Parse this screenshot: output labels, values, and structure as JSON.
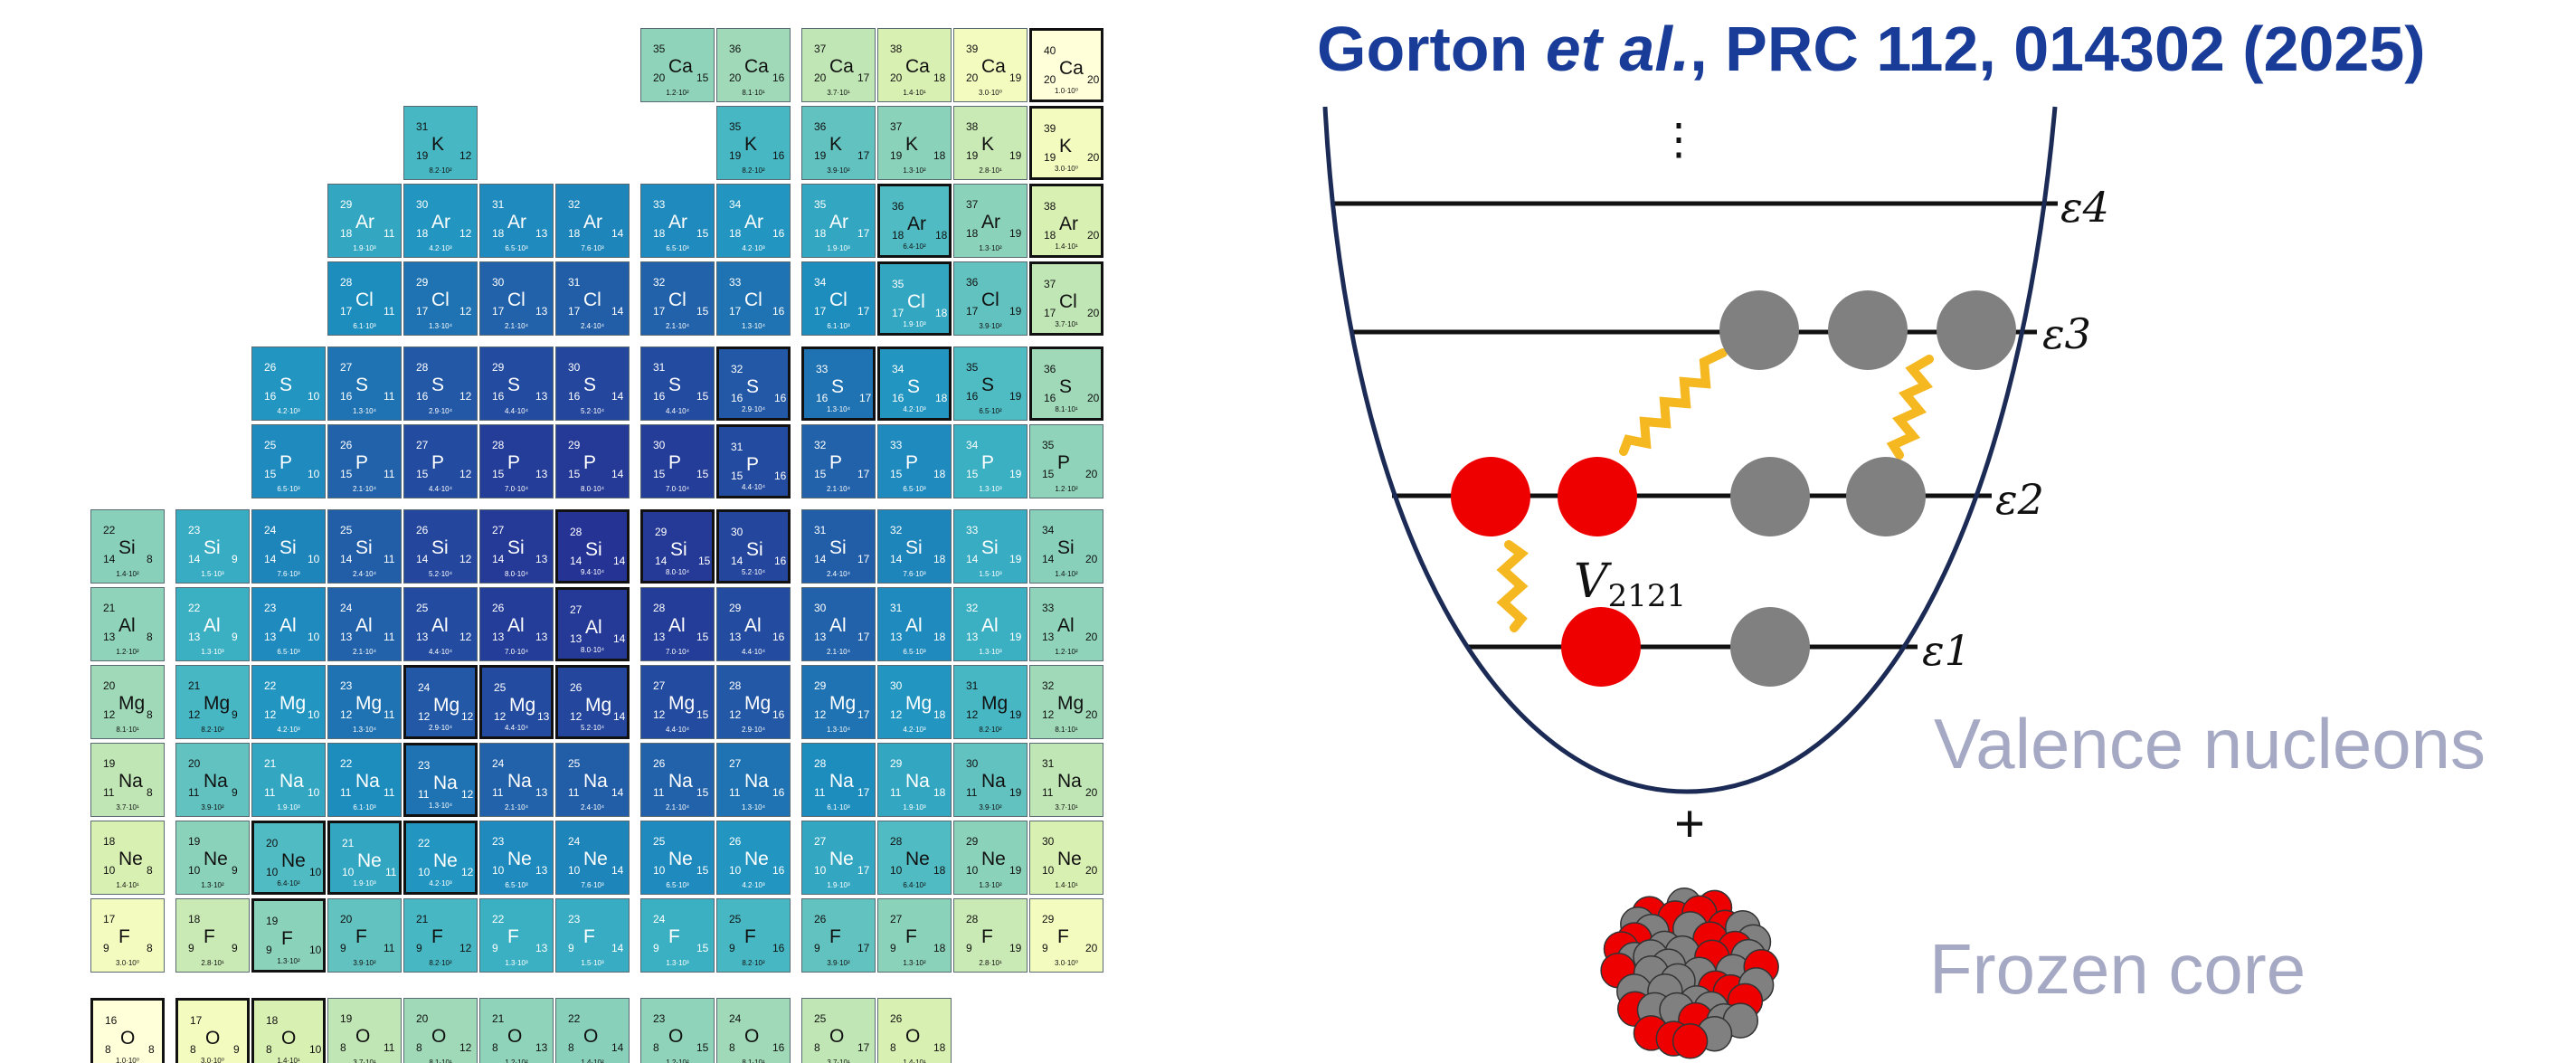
{
  "title": {
    "author": "Gorton ",
    "etal": "et al.",
    "rest": ", PRC 112, 014302 (2025)"
  },
  "labels": {
    "valence": "Valence nucleons",
    "core": "Frozen core",
    "interaction": "V2121",
    "plus": "+",
    "vdots": "⋮"
  },
  "levels": [
    "ε4",
    "ε3",
    "ε2",
    "ε1"
  ],
  "colors": {
    "title": "#1a3c99",
    "caption": "#a6a9c4",
    "proton": "#ee0000",
    "neutron": "#808080",
    "interaction": "#f5b820",
    "well": "#1b2b55"
  },
  "nuclide_chart": {
    "rows": [
      {
        "Z": 20,
        "el": "Ca",
        "N": [
          15,
          16,
          17,
          18,
          19,
          20
        ],
        "dm": [
          "1.2·10²",
          "8.1·10¹",
          "3.7·10¹",
          "1.4·10¹",
          "3.0·10⁰",
          "1.0·10⁰"
        ]
      },
      {
        "Z": 19,
        "el": "K",
        "N": [
          12,
          16,
          17,
          18,
          19,
          20
        ],
        "dm": [
          "8.2·10²",
          "8.2·10²",
          "3.9·10²",
          "1.3·10²",
          "2.8·10¹",
          "3.0·10⁰"
        ]
      },
      {
        "Z": 18,
        "el": "Ar",
        "N": [
          11,
          12,
          13,
          14,
          15,
          16,
          17,
          18,
          19,
          20
        ],
        "dm": [
          "1.9·10³",
          "4.2·10³",
          "6.5·10³",
          "7.6·10³",
          "6.5·10³",
          "4.2·10³",
          "1.9·10³",
          "6.4·10²",
          "1.3·10²",
          "1.4·10¹"
        ]
      },
      {
        "Z": 17,
        "el": "Cl",
        "N": [
          11,
          12,
          13,
          14,
          15,
          16,
          17,
          18,
          19,
          20
        ],
        "dm": [
          "6.1·10³",
          "1.3·10⁴",
          "2.1·10⁴",
          "2.4·10⁴",
          "2.1·10⁴",
          "1.3·10⁴",
          "6.1·10³",
          "1.9·10³",
          "3.9·10²",
          "3.7·10¹"
        ]
      },
      {
        "Z": 16,
        "el": "S",
        "N": [
          10,
          11,
          12,
          13,
          14,
          15,
          16,
          17,
          18,
          19,
          20
        ],
        "dm": [
          "4.2·10³",
          "1.3·10⁴",
          "2.9·10⁴",
          "4.4·10⁴",
          "5.2·10⁴",
          "4.4·10⁴",
          "2.9·10⁴",
          "1.3·10⁴",
          "4.2·10³",
          "6.5·10²",
          "8.1·10¹"
        ]
      },
      {
        "Z": 15,
        "el": "P",
        "N": [
          10,
          11,
          12,
          13,
          14,
          15,
          16,
          17,
          18,
          19,
          20
        ],
        "dm": [
          "6.5·10³",
          "2.1·10⁴",
          "4.4·10⁴",
          "7.0·10⁴",
          "8.0·10⁴",
          "7.0·10⁴",
          "4.4·10⁴",
          "2.1·10⁴",
          "6.5·10³",
          "1.3·10³",
          "1.2·10²"
        ]
      },
      {
        "Z": 14,
        "el": "Si",
        "N": [
          8,
          9,
          10,
          11,
          12,
          13,
          14,
          15,
          16,
          17,
          18,
          19,
          20
        ],
        "dm": [
          "1.4·10²",
          "1.5·10³",
          "7.6·10³",
          "2.4·10⁴",
          "5.2·10⁴",
          "8.0·10⁴",
          "9.4·10⁴",
          "8.0·10⁴",
          "5.2·10⁴",
          "2.4·10⁴",
          "7.6·10³",
          "1.5·10³",
          "1.4·10²"
        ]
      },
      {
        "Z": 13,
        "el": "Al",
        "N": [
          8,
          9,
          10,
          11,
          12,
          13,
          14,
          15,
          16,
          17,
          18,
          19,
          20
        ],
        "dm": [
          "1.2·10²",
          "1.3·10³",
          "6.5·10³",
          "2.1·10⁴",
          "4.4·10⁴",
          "7.0·10⁴",
          "8.0·10⁴",
          "7.0·10⁴",
          "4.4·10⁴",
          "2.1·10⁴",
          "6.5·10³",
          "1.3·10³",
          "1.2·10²"
        ]
      },
      {
        "Z": 12,
        "el": "Mg",
        "N": [
          8,
          9,
          10,
          11,
          12,
          13,
          14,
          15,
          16,
          17,
          18,
          19,
          20
        ],
        "dm": [
          "8.1·10¹",
          "8.2·10²",
          "4.2·10³",
          "1.3·10⁴",
          "2.9·10⁴",
          "4.4·10⁴",
          "5.2·10⁴",
          "4.4·10⁴",
          "2.9·10⁴",
          "1.3·10⁴",
          "4.2·10³",
          "8.2·10²",
          "8.1·10¹"
        ]
      },
      {
        "Z": 11,
        "el": "Na",
        "N": [
          8,
          9,
          10,
          11,
          12,
          13,
          14,
          15,
          16,
          17,
          18,
          19,
          20
        ],
        "dm": [
          "3.7·10¹",
          "3.9·10²",
          "1.9·10³",
          "6.1·10³",
          "1.3·10⁴",
          "2.1·10⁴",
          "2.4·10⁴",
          "2.1·10⁴",
          "1.3·10⁴",
          "6.1·10³",
          "1.9·10³",
          "3.9·10²",
          "3.7·10¹"
        ]
      },
      {
        "Z": 10,
        "el": "Ne",
        "N": [
          8,
          9,
          10,
          11,
          12,
          13,
          14,
          15,
          16,
          17,
          18,
          19,
          20
        ],
        "dm": [
          "1.4·10¹",
          "1.3·10²",
          "6.4·10²",
          "1.9·10³",
          "4.2·10³",
          "6.5·10³",
          "7.6·10³",
          "6.5·10³",
          "4.2·10³",
          "1.9·10³",
          "6.4·10²",
          "1.3·10²",
          "1.4·10¹"
        ]
      },
      {
        "Z": 9,
        "el": "F",
        "N": [
          8,
          9,
          10,
          11,
          12,
          13,
          14,
          15,
          16,
          17,
          18,
          19,
          20
        ],
        "dm": [
          "3.0·10⁰",
          "2.8·10¹",
          "1.3·10²",
          "3.9·10²",
          "8.2·10²",
          "1.3·10³",
          "1.5·10³",
          "1.3·10³",
          "8.2·10²",
          "3.9·10²",
          "1.3·10²",
          "2.8·10¹",
          "3.0·10⁰"
        ]
      },
      {
        "Z": 8,
        "el": "O",
        "N": [
          8,
          9,
          10,
          11,
          12,
          13,
          14,
          15,
          16,
          17,
          18
        ],
        "dm": [
          "1.0·10⁰",
          "3.0·10⁰",
          "1.4·10¹",
          "3.7·10¹",
          "8.1·10¹",
          "1.2·10²",
          "1.4·10²",
          "1.2·10²",
          "8.1·10¹",
          "3.7·10¹",
          "1.4·10¹"
        ]
      }
    ],
    "bold": [
      [
        20,
        20
      ],
      [
        19,
        20
      ],
      [
        18,
        18
      ],
      [
        18,
        20
      ],
      [
        17,
        18
      ],
      [
        17,
        20
      ],
      [
        16,
        16
      ],
      [
        16,
        17
      ],
      [
        16,
        18
      ],
      [
        16,
        20
      ],
      [
        15,
        16
      ],
      [
        14,
        14
      ],
      [
        14,
        15
      ],
      [
        14,
        16
      ],
      [
        13,
        14
      ],
      [
        12,
        12
      ],
      [
        12,
        13
      ],
      [
        12,
        14
      ],
      [
        11,
        12
      ],
      [
        10,
        10
      ],
      [
        10,
        11
      ],
      [
        10,
        12
      ],
      [
        9,
        10
      ],
      [
        8,
        8
      ],
      [
        8,
        9
      ],
      [
        8,
        10
      ]
    ]
  }
}
